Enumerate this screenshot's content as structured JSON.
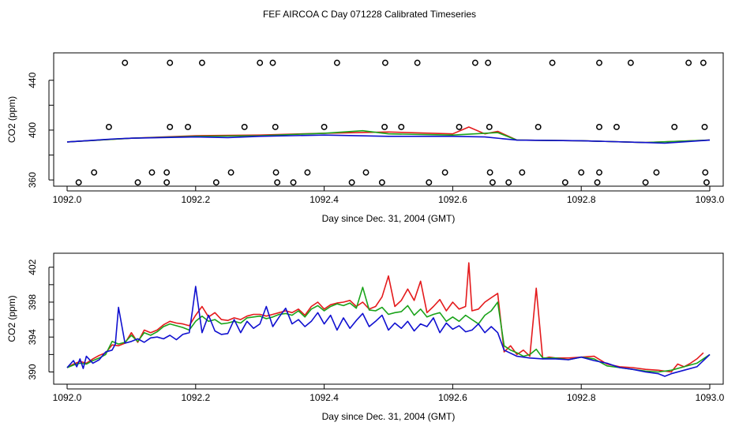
{
  "title": "FEF AIRCOA C  Day 071228  Calibrated Timeseries",
  "colors": {
    "red": "#e41a1c",
    "green": "#1aa31a",
    "blue": "#1010d0"
  },
  "chart_data": [
    {
      "type": "line",
      "xlabel": "Day since Dec. 31, 2004 (GMT)",
      "ylabel": "CO2 (ppm)",
      "xlim": [
        1092.0,
        1093.0
      ],
      "ylim": [
        355,
        462
      ],
      "x_ticks": [
        1092.0,
        1092.2,
        1092.4,
        1092.6,
        1092.8,
        1093.0
      ],
      "x_tick_labels": [
        "1092.0",
        "1092.2",
        "1092.4",
        "1092.6",
        "1092.8",
        "1093.0"
      ],
      "y_ticks": [
        360,
        380,
        400,
        420,
        440
      ],
      "y_tick_labels": [
        "360",
        "",
        "400",
        "",
        "440"
      ],
      "grid": false,
      "series": [
        {
          "color": "red",
          "x": [
            1092.0,
            1092.1,
            1092.2,
            1092.3,
            1092.4,
            1092.5,
            1092.6,
            1092.625,
            1092.65,
            1092.67,
            1092.7,
            1092.8,
            1092.9,
            1093.0
          ],
          "values": [
            390.5,
            393.5,
            395.5,
            396,
            397.5,
            398.5,
            397,
            402.5,
            397,
            399,
            392,
            391.5,
            390,
            392
          ]
        },
        {
          "color": "green",
          "x": [
            1092.0,
            1092.1,
            1092.2,
            1092.3,
            1092.4,
            1092.46,
            1092.5,
            1092.6,
            1092.67,
            1092.7,
            1092.8,
            1092.9,
            1093.0
          ],
          "values": [
            390.5,
            393.5,
            395,
            395.5,
            397.5,
            399.5,
            397,
            396,
            398,
            392,
            391.5,
            390,
            392
          ]
        },
        {
          "color": "blue",
          "x": [
            1092.0,
            1092.075,
            1092.1,
            1092.2,
            1092.25,
            1092.3,
            1092.4,
            1092.5,
            1092.6,
            1092.65,
            1092.7,
            1092.8,
            1092.9,
            1092.93,
            1093.0
          ],
          "values": [
            390.5,
            393,
            393.5,
            394.5,
            394,
            395,
            396,
            395,
            395,
            394.5,
            392,
            391.5,
            390,
            389.5,
            392
          ]
        }
      ],
      "outliers_high": [
        1092.09,
        1092.16,
        1092.21,
        1092.3,
        1092.32,
        1092.42,
        1092.495,
        1092.545,
        1092.635,
        1092.655,
        1092.755,
        1092.828,
        1092.877,
        1092.967,
        1092.99
      ],
      "outliers_mid": [
        1092.065,
        1092.16,
        1092.188,
        1092.276,
        1092.324,
        1092.4,
        1092.494,
        1092.52,
        1092.61,
        1092.657,
        1092.733,
        1092.828,
        1092.855,
        1092.945,
        1092.992
      ],
      "outliers_low_upper": [
        1092.042,
        1092.132,
        1092.155,
        1092.255,
        1092.325,
        1092.374,
        1092.465,
        1092.588,
        1092.658,
        1092.708,
        1092.8,
        1092.828,
        1092.917,
        1092.993
      ],
      "outliers_low_lower": [
        1092.018,
        1092.11,
        1092.155,
        1092.232,
        1092.327,
        1092.352,
        1092.443,
        1092.49,
        1092.563,
        1092.662,
        1092.687,
        1092.775,
        1092.825,
        1092.9,
        1092.995
      ],
      "outlier_levels": {
        "high": 454,
        "mid": 402.5,
        "low_upper": 366,
        "low_lower": 358
      }
    },
    {
      "type": "line",
      "xlabel": "Day since Dec. 31, 2004 (GMT)",
      "ylabel": "CO2 (ppm)",
      "xlim": [
        1092.0,
        1093.0
      ],
      "ylim": [
        388.6,
        403.6
      ],
      "x_ticks": [
        1092.0,
        1092.2,
        1092.4,
        1092.6,
        1092.8,
        1093.0
      ],
      "x_tick_labels": [
        "1092.0",
        "1092.2",
        "1092.4",
        "1092.6",
        "1092.8",
        "1093.0"
      ],
      "y_ticks": [
        390,
        392,
        394,
        396,
        398,
        400,
        402
      ],
      "y_tick_labels": [
        "390",
        "",
        "394",
        "",
        "398",
        "",
        "402"
      ],
      "grid": false,
      "series": [
        {
          "color": "red",
          "x": [
            1092.0,
            1092.01,
            1092.02,
            1092.03,
            1092.04,
            1092.05,
            1092.06,
            1092.07,
            1092.08,
            1092.09,
            1092.1,
            1092.11,
            1092.12,
            1092.13,
            1092.14,
            1092.15,
            1092.16,
            1092.17,
            1092.18,
            1092.19,
            1092.2,
            1092.21,
            1092.22,
            1092.23,
            1092.24,
            1092.25,
            1092.26,
            1092.27,
            1092.28,
            1092.29,
            1092.3,
            1092.31,
            1092.32,
            1092.33,
            1092.34,
            1092.35,
            1092.36,
            1092.37,
            1092.38,
            1092.39,
            1092.4,
            1092.41,
            1092.42,
            1092.43,
            1092.44,
            1092.45,
            1092.46,
            1092.47,
            1092.48,
            1092.49,
            1092.5,
            1092.51,
            1092.52,
            1092.53,
            1092.54,
            1092.55,
            1092.56,
            1092.57,
            1092.58,
            1092.59,
            1092.6,
            1092.61,
            1092.62,
            1092.625,
            1092.63,
            1092.64,
            1092.65,
            1092.66,
            1092.67,
            1092.68,
            1092.69,
            1092.7,
            1092.71,
            1092.72,
            1092.73,
            1092.74,
            1092.75,
            1092.76,
            1092.78,
            1092.8,
            1092.82,
            1092.84,
            1092.86,
            1092.88,
            1092.9,
            1092.92,
            1092.94,
            1092.95,
            1092.96,
            1092.97,
            1092.98,
            1092.99
          ],
          "values": [
            390.5,
            390.9,
            391.2,
            391.0,
            391.5,
            391.9,
            392.2,
            393.1,
            393.0,
            393.3,
            394.5,
            393.4,
            394.8,
            394.5,
            394.8,
            395.4,
            395.8,
            395.6,
            395.5,
            395.3,
            396.5,
            397.5,
            396.3,
            396.8,
            396.0,
            395.9,
            396.2,
            396.0,
            396.4,
            396.6,
            396.6,
            396.4,
            396.6,
            396.8,
            397.0,
            396.8,
            397.2,
            396.5,
            397.5,
            398.0,
            397.2,
            397.7,
            397.9,
            398.0,
            398.2,
            397.5,
            398.0,
            397.2,
            397.5,
            398.6,
            401.0,
            397.5,
            398.2,
            399.5,
            398.2,
            400.4,
            396.8,
            397.5,
            398.3,
            397.0,
            398.0,
            397.2,
            397.5,
            402.5,
            397.0,
            397.2,
            398.0,
            398.5,
            399.0,
            392.3,
            393.0,
            392.0,
            392.5,
            391.8,
            399.6,
            391.5,
            391.7,
            391.6,
            391.6,
            391.7,
            391.8,
            390.9,
            390.6,
            390.5,
            390.3,
            390.2,
            390.0,
            390.9,
            390.6,
            391.0,
            391.5,
            392.2
          ]
        },
        {
          "color": "green",
          "x": [
            1092.0,
            1092.01,
            1092.02,
            1092.03,
            1092.04,
            1092.05,
            1092.06,
            1092.07,
            1092.08,
            1092.09,
            1092.1,
            1092.11,
            1092.12,
            1092.13,
            1092.14,
            1092.15,
            1092.16,
            1092.17,
            1092.18,
            1092.19,
            1092.2,
            1092.21,
            1092.22,
            1092.23,
            1092.24,
            1092.25,
            1092.26,
            1092.27,
            1092.28,
            1092.29,
            1092.3,
            1092.31,
            1092.32,
            1092.33,
            1092.34,
            1092.35,
            1092.36,
            1092.37,
            1092.38,
            1092.39,
            1092.4,
            1092.41,
            1092.42,
            1092.43,
            1092.44,
            1092.45,
            1092.46,
            1092.47,
            1092.48,
            1092.49,
            1092.5,
            1092.51,
            1092.52,
            1092.53,
            1092.54,
            1092.55,
            1092.56,
            1092.57,
            1092.58,
            1092.59,
            1092.6,
            1092.61,
            1092.62,
            1092.63,
            1092.64,
            1092.65,
            1092.66,
            1092.67,
            1092.68,
            1092.69,
            1092.7,
            1092.71,
            1092.72,
            1092.73,
            1092.74,
            1092.76,
            1092.78,
            1092.8,
            1092.82,
            1092.84,
            1092.86,
            1092.88,
            1092.9,
            1092.92,
            1092.94,
            1092.96,
            1092.98,
            1093.0
          ],
          "values": [
            390.5,
            390.8,
            391.0,
            390.9,
            391.3,
            391.6,
            392.0,
            393.5,
            393.2,
            393.4,
            394.2,
            393.5,
            394.5,
            394.2,
            394.6,
            395.2,
            395.5,
            395.3,
            395.1,
            394.8,
            395.8,
            396.4,
            395.8,
            396.0,
            395.5,
            395.6,
            395.8,
            395.6,
            396.2,
            396.3,
            396.4,
            396.1,
            396.3,
            396.6,
            396.7,
            396.5,
            397.0,
            396.3,
            397.2,
            397.6,
            397.0,
            397.5,
            397.8,
            397.6,
            397.9,
            397.3,
            399.7,
            397.1,
            397.0,
            397.4,
            396.6,
            396.8,
            396.9,
            397.6,
            396.5,
            397.2,
            396.3,
            396.6,
            396.8,
            395.8,
            396.3,
            395.8,
            396.5,
            396.0,
            395.5,
            396.5,
            397.0,
            398.0,
            393.0,
            392.5,
            392.2,
            391.8,
            392.0,
            392.6,
            391.6,
            391.6,
            391.4,
            391.7,
            391.5,
            390.7,
            390.5,
            390.3,
            390.1,
            390.0,
            390.2,
            390.6,
            391.0,
            392.0
          ]
        },
        {
          "color": "blue",
          "x": [
            1092.0,
            1092.01,
            1092.015,
            1092.02,
            1092.025,
            1092.03,
            1092.04,
            1092.05,
            1092.06,
            1092.07,
            1092.075,
            1092.08,
            1092.09,
            1092.1,
            1092.11,
            1092.12,
            1092.13,
            1092.14,
            1092.15,
            1092.16,
            1092.17,
            1092.18,
            1092.19,
            1092.195,
            1092.2,
            1092.21,
            1092.22,
            1092.23,
            1092.24,
            1092.25,
            1092.26,
            1092.27,
            1092.28,
            1092.29,
            1092.3,
            1092.31,
            1092.32,
            1092.33,
            1092.34,
            1092.35,
            1092.36,
            1092.37,
            1092.38,
            1092.39,
            1092.4,
            1092.41,
            1092.42,
            1092.43,
            1092.44,
            1092.45,
            1092.46,
            1092.47,
            1092.48,
            1092.49,
            1092.5,
            1092.51,
            1092.52,
            1092.53,
            1092.54,
            1092.55,
            1092.56,
            1092.57,
            1092.58,
            1092.59,
            1092.6,
            1092.61,
            1092.62,
            1092.63,
            1092.64,
            1092.65,
            1092.66,
            1092.67,
            1092.68,
            1092.7,
            1092.72,
            1092.74,
            1092.76,
            1092.78,
            1092.8,
            1092.82,
            1092.84,
            1092.86,
            1092.88,
            1092.9,
            1092.92,
            1092.93,
            1092.94,
            1092.96,
            1092.98,
            1093.0
          ],
          "values": [
            390.5,
            391.3,
            390.6,
            391.5,
            390.4,
            391.8,
            391.0,
            391.4,
            392.3,
            392.5,
            393.2,
            397.4,
            393.3,
            393.5,
            393.8,
            393.4,
            393.9,
            394.0,
            393.8,
            394.2,
            393.7,
            394.3,
            394.5,
            397.0,
            399.8,
            394.5,
            396.5,
            394.7,
            394.3,
            394.4,
            396.0,
            394.5,
            395.8,
            395.0,
            395.5,
            397.5,
            395.2,
            396.3,
            397.3,
            395.5,
            396.0,
            395.2,
            395.8,
            396.8,
            395.5,
            396.5,
            394.8,
            396.2,
            395.0,
            395.9,
            396.7,
            395.2,
            395.8,
            396.5,
            394.8,
            395.6,
            395.0,
            395.8,
            394.7,
            395.5,
            395.2,
            396.2,
            394.5,
            395.6,
            394.9,
            395.3,
            394.6,
            394.8,
            395.5,
            394.5,
            395.2,
            394.5,
            392.5,
            391.8,
            391.6,
            391.5,
            391.5,
            391.4,
            391.7,
            391.3,
            391.0,
            390.5,
            390.3,
            390.0,
            389.8,
            389.5,
            389.8,
            390.2,
            390.6,
            392.0
          ]
        }
      ]
    }
  ]
}
